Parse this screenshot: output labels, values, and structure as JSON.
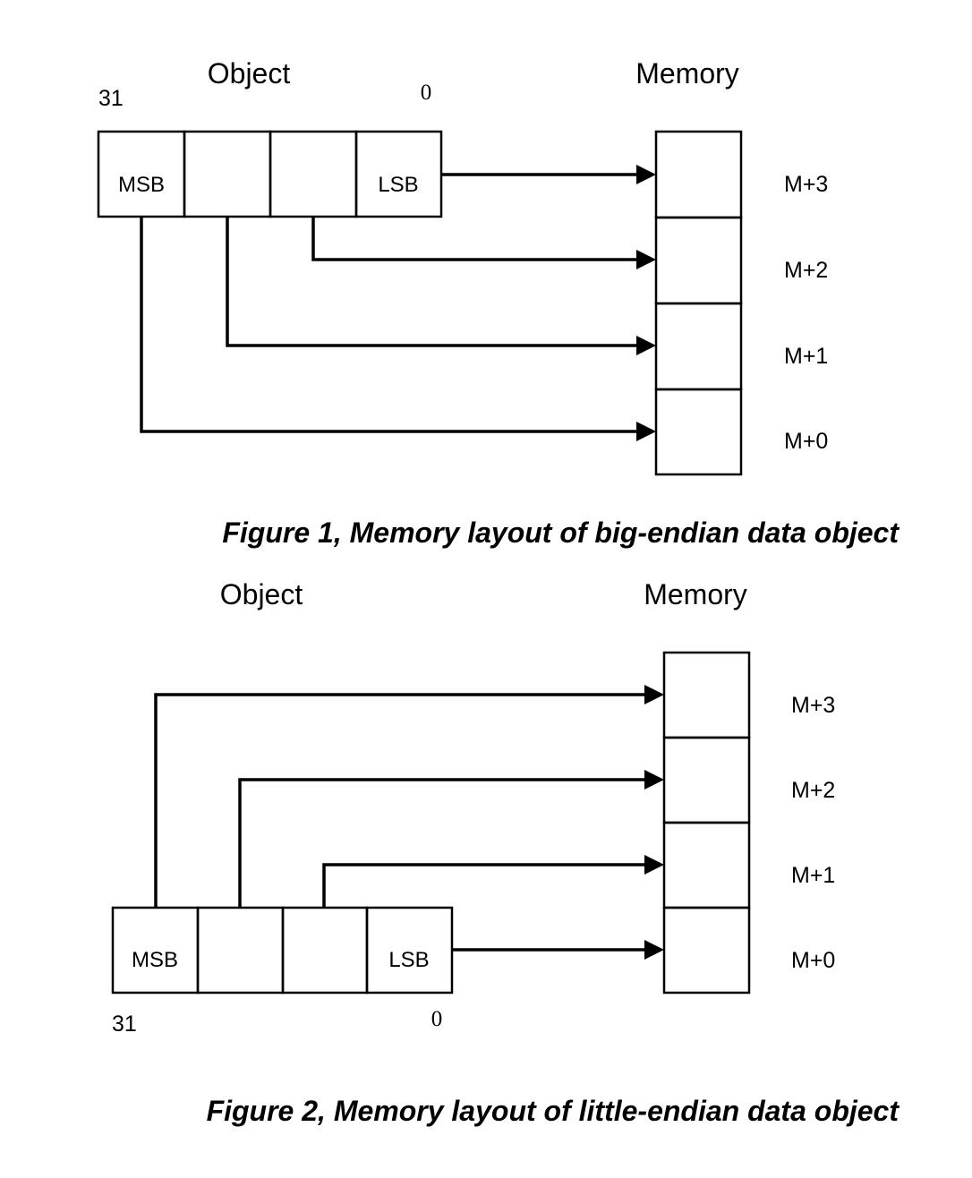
{
  "figure1": {
    "object_title": "Object",
    "memory_title": "Memory",
    "bit_high": "31",
    "bit_low": "0",
    "cells": [
      "MSB",
      "",
      "",
      "LSB"
    ],
    "memory_labels": [
      "M+3",
      "M+2",
      "M+1",
      "M+0"
    ],
    "caption": "Figure 1, Memory layout of big-endian data object"
  },
  "figure2": {
    "object_title": "Object",
    "memory_title": "Memory",
    "bit_high": "31",
    "bit_low": "0",
    "cells": [
      "MSB",
      "",
      "",
      "LSB"
    ],
    "memory_labels": [
      "M+3",
      "M+2",
      "M+1",
      "M+0"
    ],
    "caption": "Figure 2, Memory layout of little-endian data object"
  }
}
